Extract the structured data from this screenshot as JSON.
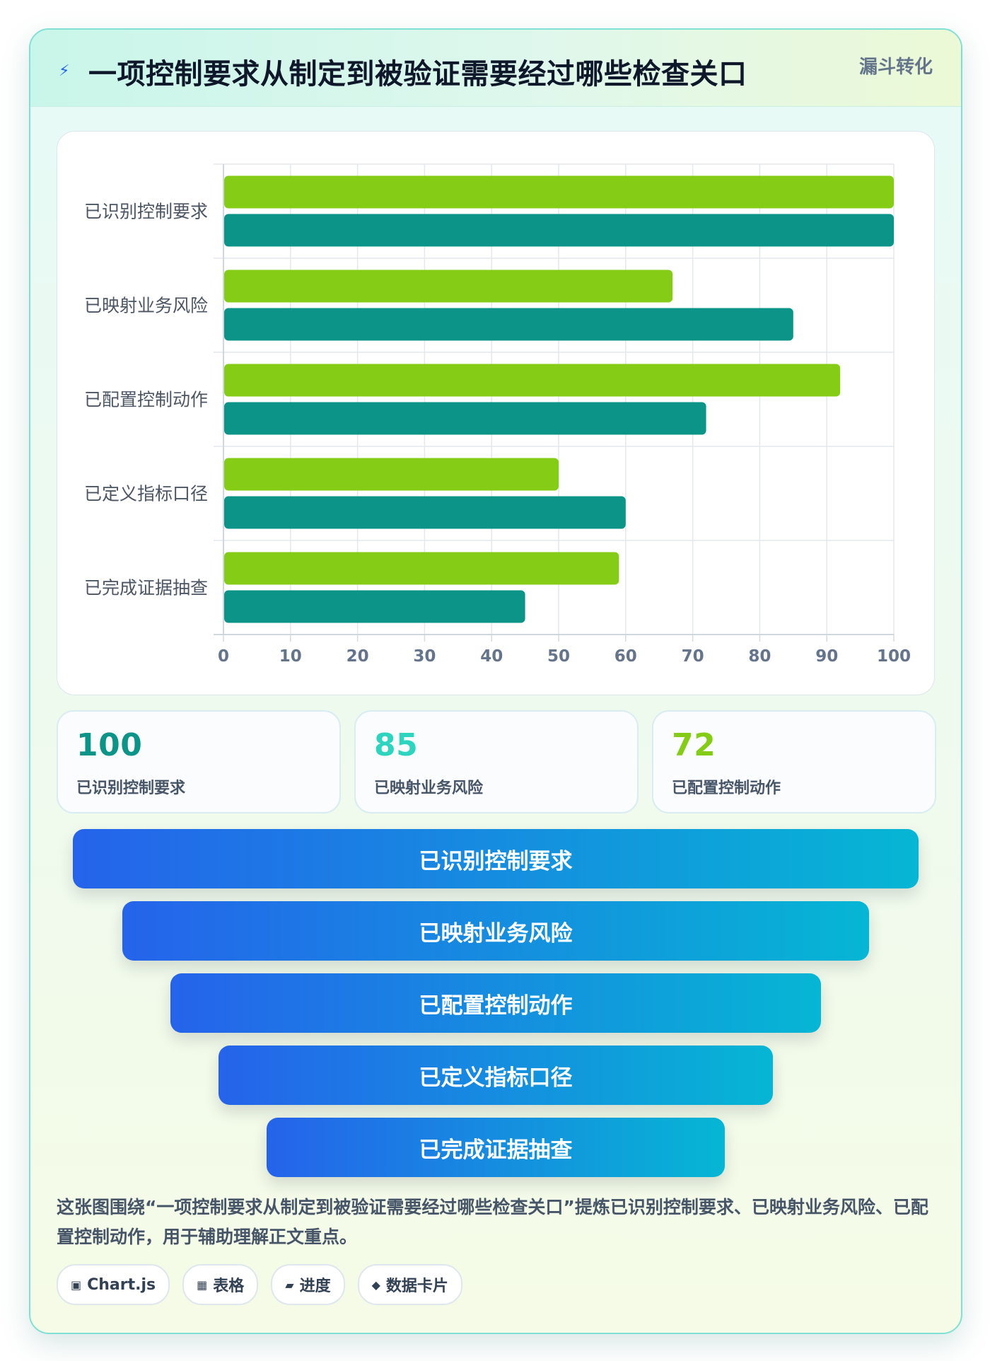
{
  "header": {
    "icon": "lightning-icon",
    "title": "一项控制要求从制定到被验证需要经过哪些检查关口",
    "badge": "漏斗转化"
  },
  "colors": {
    "bar_series_a": "#84cc16",
    "bar_series_b": "#0d9488",
    "stat_values": [
      "#0d9488",
      "#2dd4bf",
      "#84cc16"
    ],
    "funnel_start": "#2563eb",
    "funnel_end": "#06b6d4"
  },
  "chart_data": {
    "type": "bar",
    "orientation": "horizontal",
    "categories": [
      "已识别控制要求",
      "已映射业务风险",
      "已配置控制动作",
      "已定义指标口径",
      "已完成证据抽查"
    ],
    "series": [
      {
        "values": [
          100,
          67,
          92,
          50,
          59
        ]
      },
      {
        "values": [
          100,
          85,
          72,
          60,
          45
        ]
      }
    ],
    "xlim": [
      0,
      100
    ],
    "x_ticks": [
      "0",
      "10",
      "20",
      "30",
      "40",
      "50",
      "60",
      "70",
      "80",
      "90",
      "100"
    ],
    "grid": true,
    "legend": "none"
  },
  "stats": [
    {
      "value": "100",
      "label": "已识别控制要求"
    },
    {
      "value": "85",
      "label": "已映射业务风险"
    },
    {
      "value": "72",
      "label": "已配置控制动作"
    }
  ],
  "funnel": [
    "已识别控制要求",
    "已映射业务风险",
    "已配置控制动作",
    "已定义指标口径",
    "已完成证据抽查"
  ],
  "description": "这张图围绕“一项控制要求从制定到被验证需要经过哪些检查关口”提炼已识别控制要求、已映射业务风险、已配置控制动作，用于辅助理解正文重点。",
  "chips": [
    {
      "icon": "▣",
      "label": "Chart.js"
    },
    {
      "icon": "▦",
      "label": "表格"
    },
    {
      "icon": "▰",
      "label": "进度"
    },
    {
      "icon": "◆",
      "label": "数据卡片"
    }
  ]
}
